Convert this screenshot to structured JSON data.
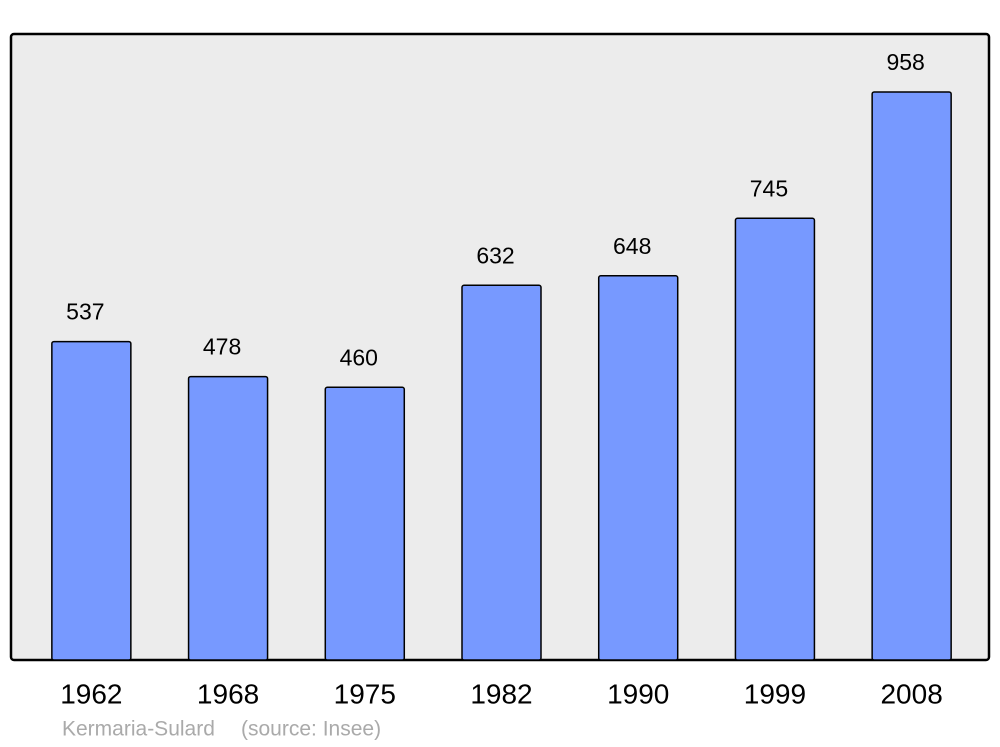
{
  "chart_data": {
    "type": "bar",
    "categories": [
      "1962",
      "1968",
      "1975",
      "1982",
      "1990",
      "1999",
      "2008"
    ],
    "values": [
      537,
      478,
      460,
      632,
      648,
      745,
      958
    ],
    "color": "#7799ff",
    "place": "Kermaria-Sulard",
    "source": "(source: Insee)"
  }
}
